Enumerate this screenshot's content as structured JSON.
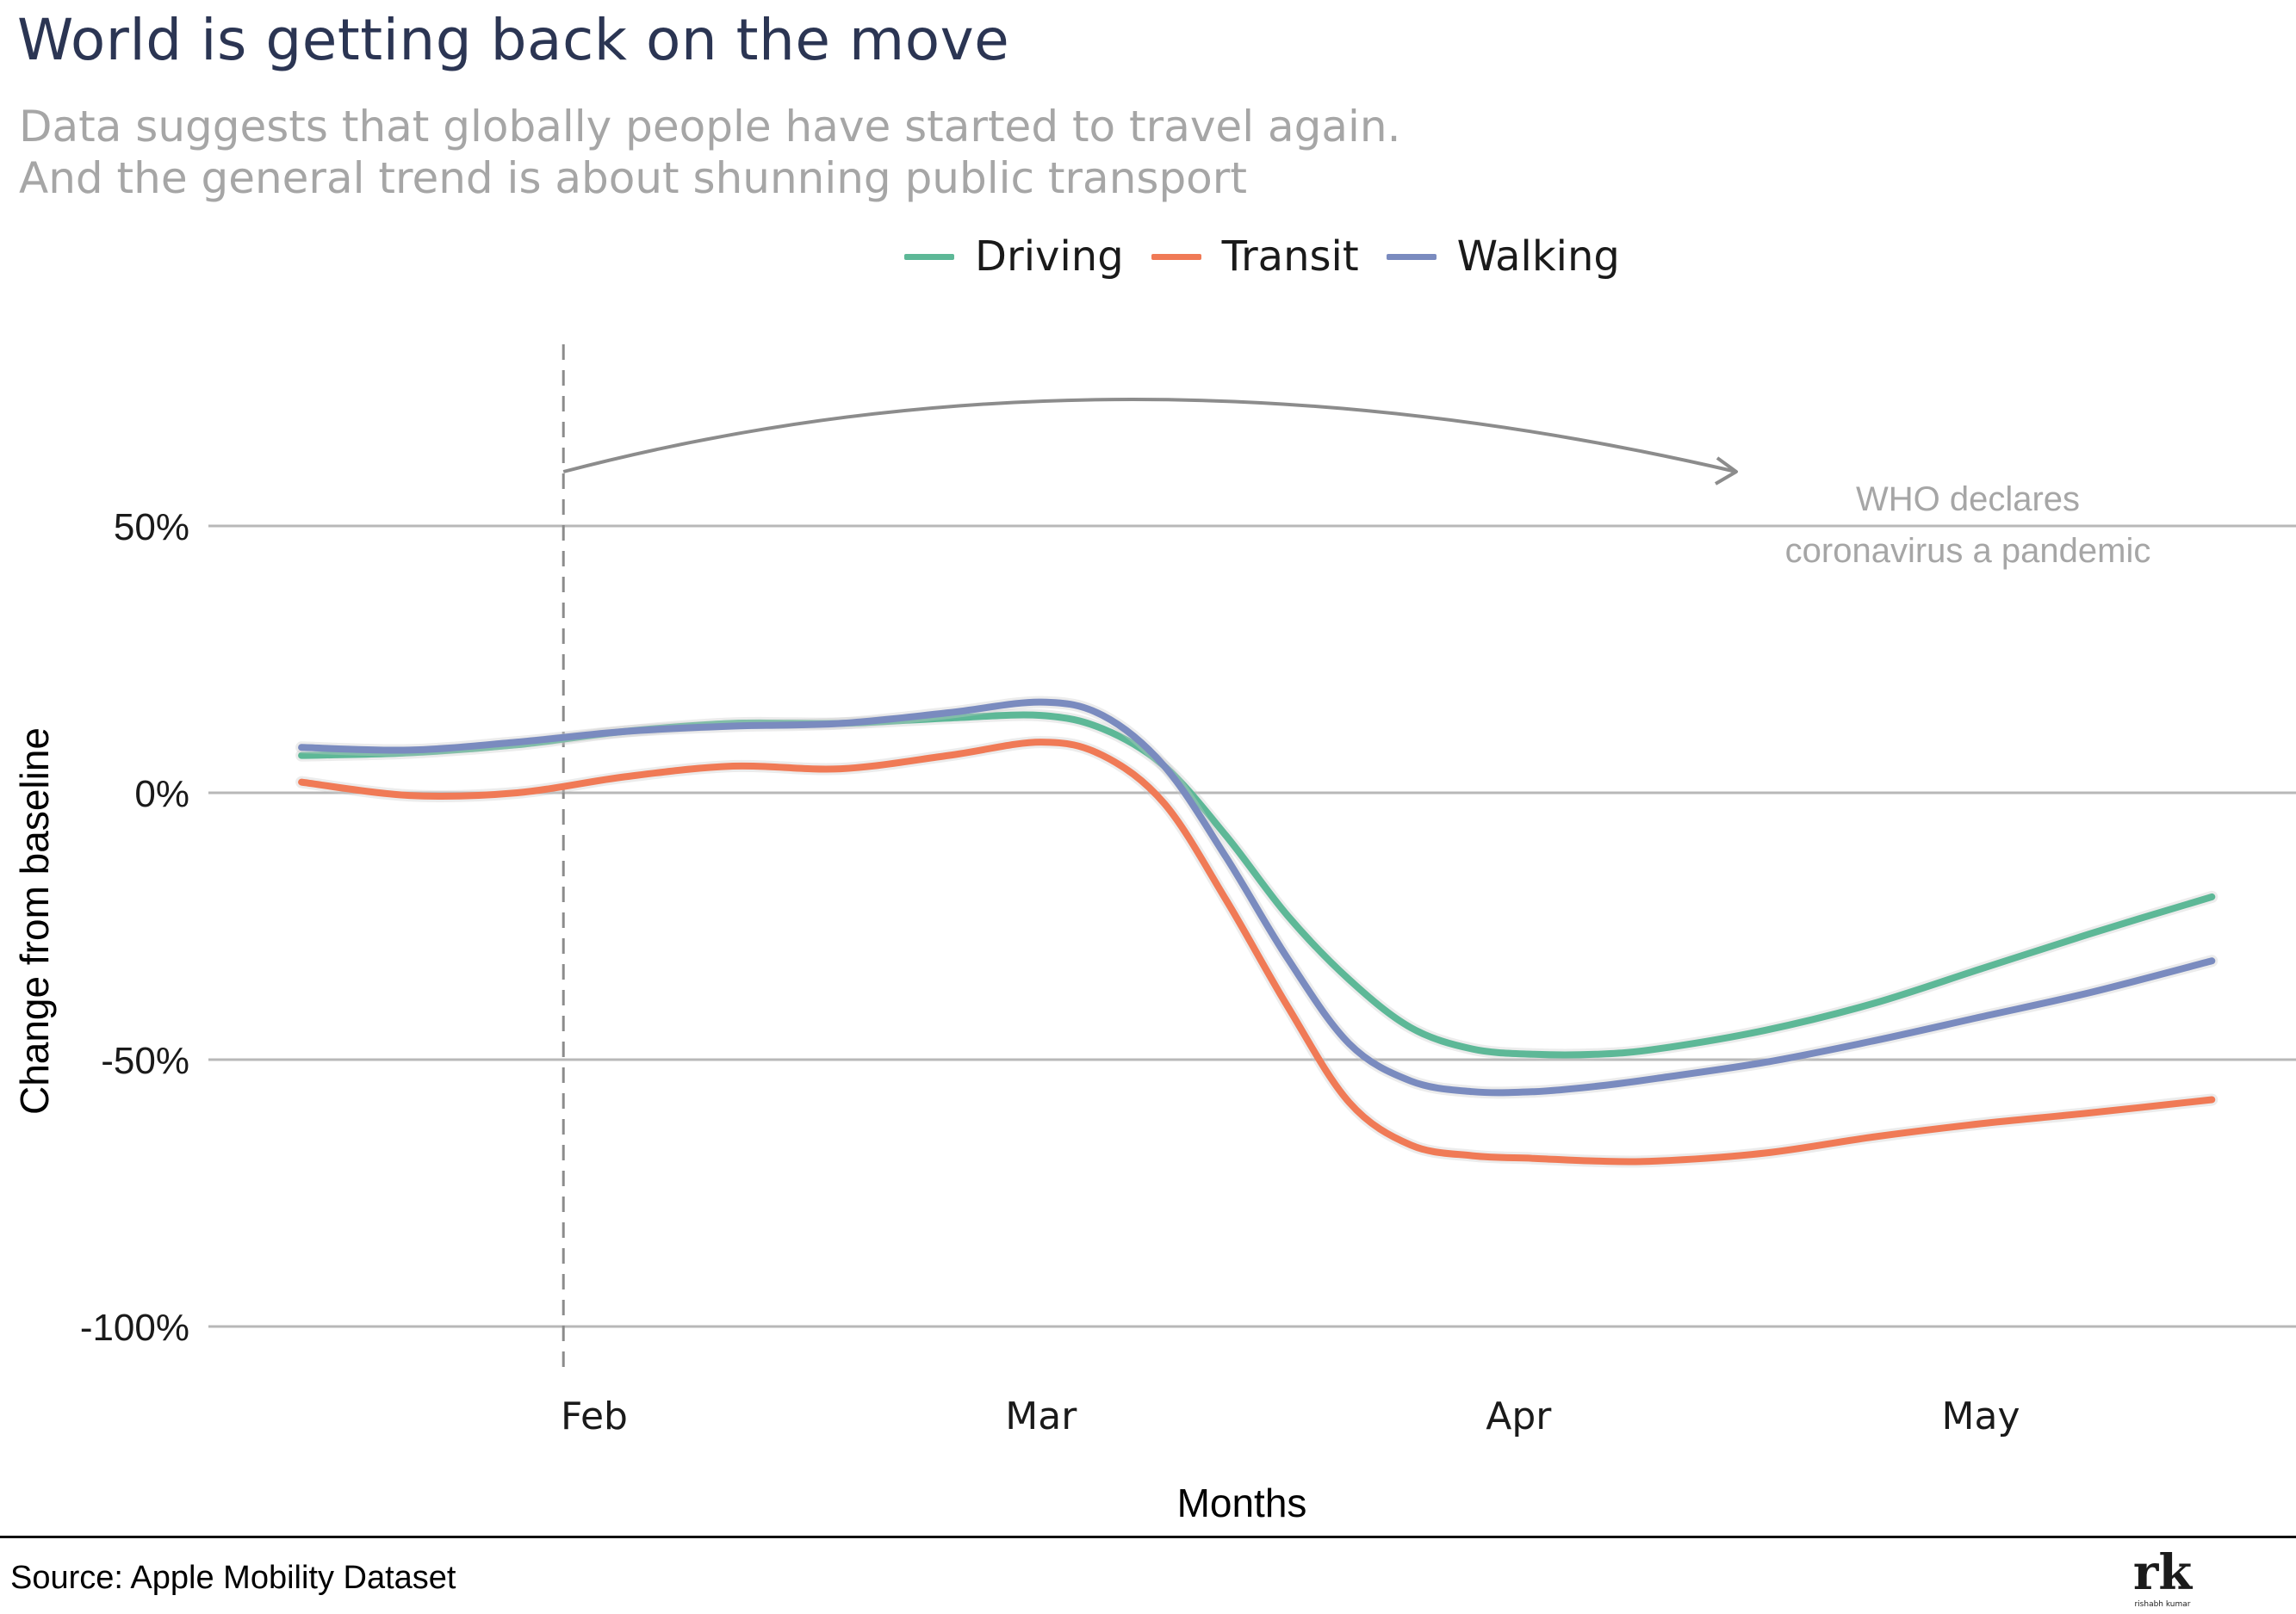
{
  "title": "World is getting back on the move",
  "subtitle_lines": [
    "Data suggests that globally people have started to travel again.",
    "And the general trend is about shunning public transport"
  ],
  "source": "Source: Apple Mobility Dataset",
  "logo": {
    "text": "rk",
    "subtext": "rishabh kumar"
  },
  "chart_data": {
    "type": "line",
    "title": "World is getting back on the move",
    "xlabel": "Months",
    "ylabel": "Change from baseline",
    "x_ticks": [
      "Feb",
      "Mar",
      "Apr",
      "May"
    ],
    "x_tick_dates": [
      "2020-02-01",
      "2020-03-01",
      "2020-04-01",
      "2020-05-01"
    ],
    "y_ticks": [
      {
        "value": 50,
        "label": "50%"
      },
      {
        "value": 0,
        "label": "0%"
      },
      {
        "value": -50,
        "label": "-50%"
      },
      {
        "value": -100,
        "label": "-100%"
      }
    ],
    "xlim": [
      "2020-01-13",
      "2020-05-16"
    ],
    "ylim": [
      -100,
      50
    ],
    "grid": "horizontal",
    "legend_position": "top",
    "x": [
      "2020-01-13",
      "2020-01-20",
      "2020-01-27",
      "2020-02-03",
      "2020-02-10",
      "2020-02-17",
      "2020-02-24",
      "2020-03-01",
      "2020-03-05",
      "2020-03-09",
      "2020-03-13",
      "2020-03-17",
      "2020-03-21",
      "2020-03-25",
      "2020-03-29",
      "2020-04-02",
      "2020-04-06",
      "2020-04-10",
      "2020-04-17",
      "2020-04-24",
      "2020-05-01",
      "2020-05-08",
      "2020-05-16"
    ],
    "series": [
      {
        "name": "Driving",
        "color": "#5db897",
        "values": [
          7,
          7.5,
          9,
          11.5,
          13,
          13,
          14,
          14.5,
          12,
          5,
          -8,
          -23,
          -35,
          -44,
          -48,
          -49,
          -49,
          -48,
          -44.5,
          -39.5,
          -33,
          -26.5,
          -19.5
        ]
      },
      {
        "name": "Transit",
        "color": "#f07a56",
        "values": [
          2,
          -0.5,
          0,
          3,
          5,
          4.5,
          7,
          9.5,
          7,
          -2,
          -20,
          -40,
          -58,
          -66,
          -68,
          -68.5,
          -69,
          -69,
          -67.5,
          -64.5,
          -62,
          -60,
          -57.5
        ]
      },
      {
        "name": "Walking",
        "color": "#7a8bbf",
        "values": [
          8.5,
          8,
          9.5,
          11.5,
          12.5,
          13,
          15,
          17,
          14.5,
          5,
          -12,
          -31,
          -47,
          -54,
          -56,
          -56,
          -55,
          -53.5,
          -50.5,
          -46.5,
          -42,
          -37.5,
          -31.5
        ]
      }
    ],
    "reference_line": {
      "date": "2020-01-30",
      "style": "dashed"
    },
    "annotation": {
      "text_lines": [
        "WHO declares",
        "coronavirus a pandemic"
      ]
    }
  }
}
